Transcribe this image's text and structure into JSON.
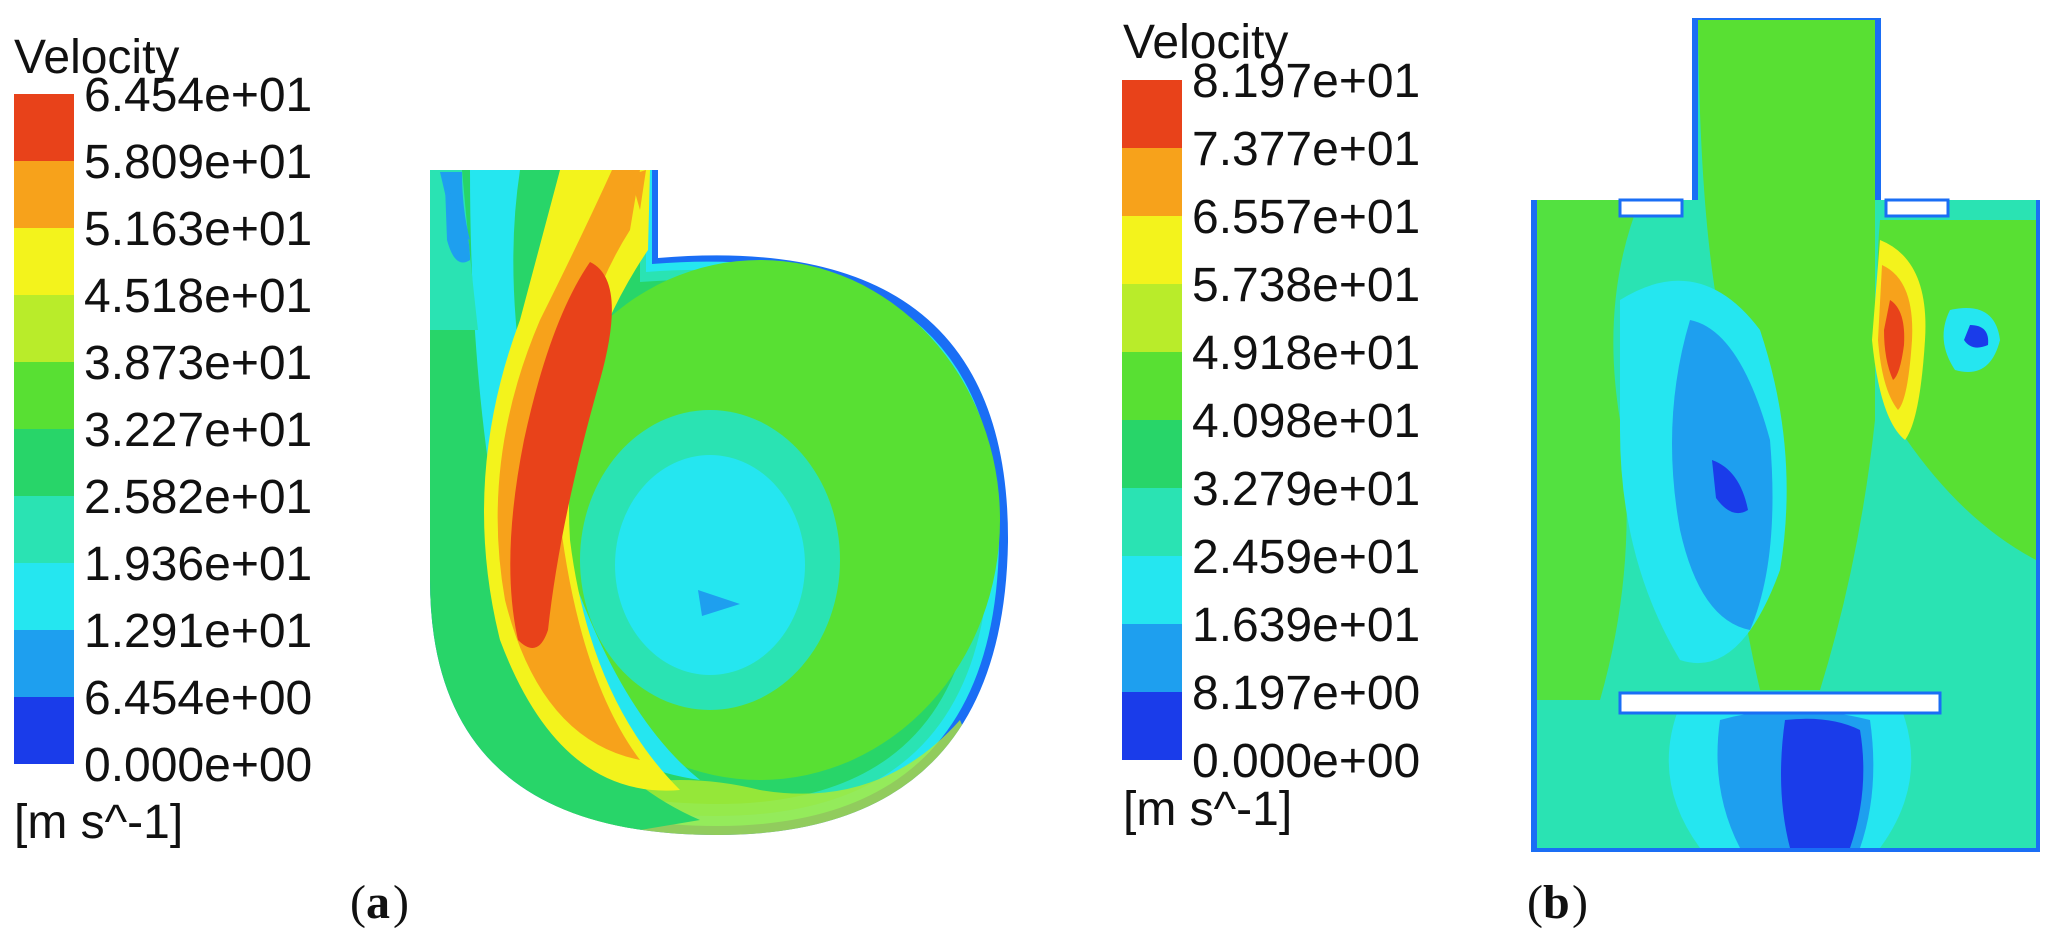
{
  "panels": [
    {
      "id": "a",
      "legend_title": "Velocity",
      "unit": "[m s^-1]",
      "caption_open": "(",
      "caption_letter": "a",
      "caption_close": ")",
      "levels": [
        "6.454e+01",
        "5.809e+01",
        "5.163e+01",
        "4.518e+01",
        "3.873e+01",
        "3.227e+01",
        "2.582e+01",
        "1.936e+01",
        "1.291e+01",
        "6.454e+00",
        "0.000e+00"
      ]
    },
    {
      "id": "b",
      "legend_title": "Velocity",
      "unit": "[m s^-1]",
      "caption_open": "(",
      "caption_letter": "b",
      "caption_close": ")",
      "levels": [
        "8.197e+01",
        "7.377e+01",
        "6.557e+01",
        "5.738e+01",
        "4.918e+01",
        "4.098e+01",
        "3.279e+01",
        "2.459e+01",
        "1.639e+01",
        "8.197e+00",
        "0.000e+00"
      ]
    }
  ],
  "colormap": [
    "#e8421a",
    "#f7a21b",
    "#f3f31c",
    "#b9ec2a",
    "#58e033",
    "#28d569",
    "#2ae3b3",
    "#25e6f0",
    "#1e9fef",
    "#1a3cea"
  ]
}
